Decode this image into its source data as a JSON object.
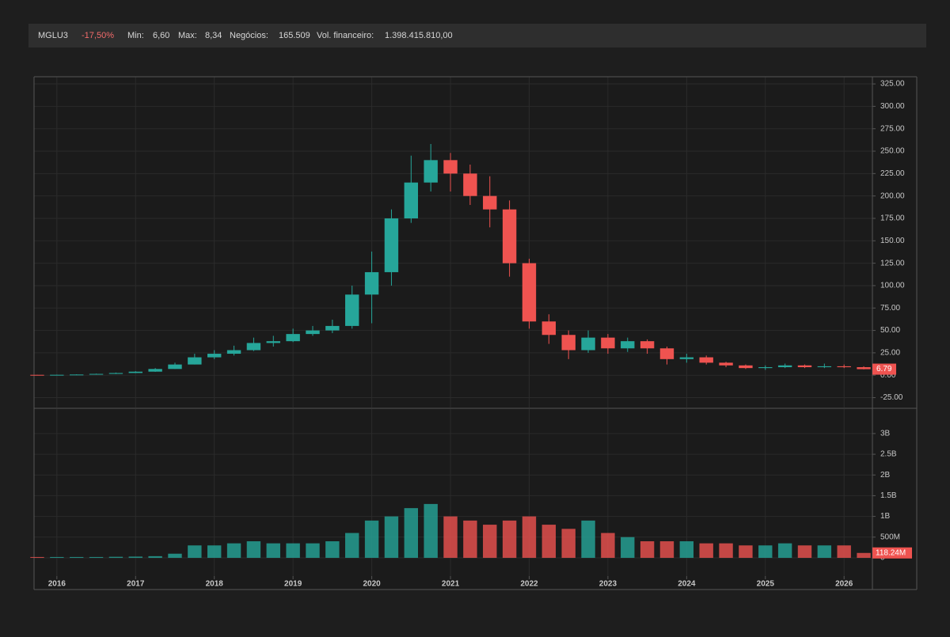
{
  "header": {
    "ticker": "MGLU3",
    "change": "-17,50%",
    "fields": [
      {
        "label": "Min:",
        "value": "6,60"
      },
      {
        "label": "Max:",
        "value": "8,34"
      },
      {
        "label": "Negócios:",
        "value": "165.509"
      },
      {
        "label": "Vol. financeiro:",
        "value": "1.398.415.810,00"
      }
    ]
  },
  "chart_data": {
    "type": "candlestick",
    "up_color": "#26a69a",
    "down_color": "#ef5350",
    "grid": true,
    "x": [
      2015.75,
      2016.0,
      2016.25,
      2016.5,
      2016.75,
      2017.0,
      2017.25,
      2017.5,
      2017.75,
      2018.0,
      2018.25,
      2018.5,
      2018.75,
      2019.0,
      2019.25,
      2019.5,
      2019.75,
      2020.0,
      2020.25,
      2020.5,
      2020.75,
      2021.0,
      2021.25,
      2021.5,
      2021.75,
      2022.0,
      2022.25,
      2022.5,
      2022.75,
      2023.0,
      2023.25,
      2023.5,
      2023.75,
      2024.0,
      2024.25,
      2024.5,
      2024.75,
      2025.0,
      2025.25,
      2025.5,
      2025.75,
      2026.0,
      2026.25
    ],
    "open": [
      0.45,
      0.4,
      0.5,
      0.8,
      1.5,
      2.5,
      4,
      7,
      12,
      20,
      24,
      28,
      36,
      38,
      46,
      50,
      55,
      90,
      115,
      175,
      215,
      240,
      225,
      200,
      185,
      125,
      60,
      45,
      28,
      42,
      30,
      38,
      30,
      18,
      20,
      14,
      11,
      8,
      9,
      11,
      9,
      10,
      9
    ],
    "high": [
      0.6,
      0.7,
      1,
      1.8,
      3,
      4.5,
      8,
      14,
      24,
      28,
      33,
      42,
      44,
      52,
      55,
      62,
      100,
      138,
      185,
      245,
      258,
      248,
      235,
      222,
      195,
      130,
      68,
      50,
      50,
      46,
      42,
      40,
      32,
      24,
      22,
      15,
      12,
      11,
      13,
      12,
      13,
      12,
      10
    ],
    "low": [
      0.35,
      0.3,
      0.5,
      0.8,
      1.4,
      2.4,
      3.8,
      7,
      12,
      18,
      22,
      27,
      32,
      37,
      44,
      47,
      52,
      58,
      100,
      170,
      205,
      205,
      190,
      165,
      110,
      52,
      35,
      18,
      25,
      24,
      26,
      24,
      12,
      14,
      12,
      9,
      7,
      6,
      8,
      8,
      8,
      8,
      6.5
    ],
    "close": [
      0.4,
      0.5,
      0.8,
      1.5,
      2.5,
      4,
      7,
      12,
      20,
      24,
      28,
      36,
      38,
      46,
      50,
      55,
      90,
      115,
      175,
      215,
      240,
      225,
      200,
      185,
      125,
      60,
      45,
      28,
      42,
      30,
      38,
      30,
      18,
      20,
      14,
      11,
      8,
      9,
      11,
      9,
      10,
      9,
      6.79
    ],
    "volume": [
      20000000,
      20000000,
      20000000,
      20000000,
      25000000,
      30000000,
      40000000,
      100000000,
      300000000,
      300000000,
      350000000,
      400000000,
      350000000,
      350000000,
      350000000,
      400000000,
      600000000,
      900000000,
      1000000000,
      1200000000,
      1300000000,
      1000000000,
      900000000,
      800000000,
      900000000,
      1000000000,
      800000000,
      700000000,
      900000000,
      600000000,
      500000000,
      400000000,
      400000000,
      400000000,
      350000000,
      350000000,
      300000000,
      300000000,
      350000000,
      300000000,
      300000000,
      300000000,
      118240000
    ],
    "xlim": [
      2015.71,
      2026.36
    ],
    "xticks": [
      2016,
      2017,
      2018,
      2019,
      2020,
      2021,
      2022,
      2023,
      2024,
      2025,
      2026
    ],
    "ylim": [
      -36,
      333
    ],
    "yticks": [
      {
        "value": -25,
        "label": "-25.00"
      },
      {
        "value": 0,
        "label": "0.00"
      },
      {
        "value": 25,
        "label": "25.00"
      },
      {
        "value": 50,
        "label": "50.00"
      },
      {
        "value": 75,
        "label": "75.00"
      },
      {
        "value": 100,
        "label": "100.00"
      },
      {
        "value": 125,
        "label": "125.00"
      },
      {
        "value": 150,
        "label": "150.00"
      },
      {
        "value": 175,
        "label": "175.00"
      },
      {
        "value": 200,
        "label": "200.00"
      },
      {
        "value": 225,
        "label": "225.00"
      },
      {
        "value": 250,
        "label": "250.00"
      },
      {
        "value": 275,
        "label": "275.00"
      },
      {
        "value": 300,
        "label": "300.00"
      },
      {
        "value": 325,
        "label": "325.00"
      }
    ],
    "y2lim": [
      -440000000,
      3590000000
    ],
    "y2ticks": [
      0,
      {
        "value": 500000000,
        "label": "500M"
      },
      {
        "value": 1000000000,
        "label": "1B"
      },
      {
        "value": 1500000000,
        "label": "1.5B"
      },
      {
        "value": 2000000000,
        "label": "2B"
      },
      {
        "value": 2500000000,
        "label": "2.5B"
      },
      {
        "value": 3000000000,
        "label": "3B"
      }
    ],
    "last_price": 6.79,
    "last_volume": {
      "value": 118240000,
      "label": "118.24M"
    }
  }
}
